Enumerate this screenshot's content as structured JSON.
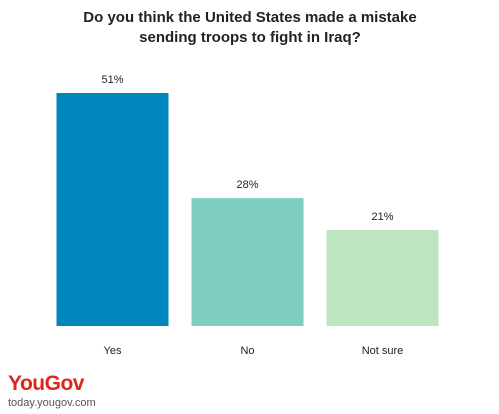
{
  "chart_data": {
    "type": "bar",
    "title": "Do you think the United States made a mistake sending troops to fight in Iraq?",
    "categories": [
      "Yes",
      "No",
      "Not sure"
    ],
    "values": [
      51,
      28,
      21
    ],
    "value_labels": [
      "51%",
      "28%",
      "21%"
    ],
    "colors": [
      "#0087bc",
      "#7ecdc3",
      "#bde6c0"
    ]
  },
  "logo": "YouGov",
  "source": "today.yougov.com"
}
